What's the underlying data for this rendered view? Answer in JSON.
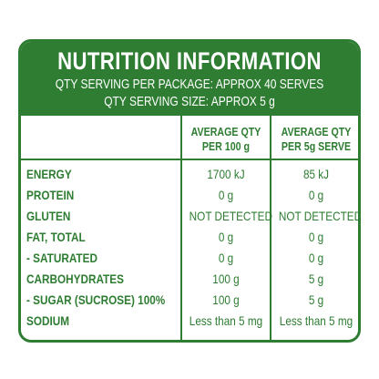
{
  "header": {
    "title": "NUTRITION INFORMATION",
    "servings_per_package": "QTY SERVING PER PACKAGE: APPROX 40 SERVES",
    "serving_size": "QTY SERVING SIZE: APPROX 5 g"
  },
  "columns": {
    "per_100g_line1": "AVERAGE QTY",
    "per_100g_line2": "PER 100 g",
    "per_serve_line1": "AVERAGE QTY",
    "per_serve_line2": "PER 5g SERVE"
  },
  "rows": [
    {
      "label": "ENERGY",
      "per_100g": "1700 kJ",
      "per_serve": "85 kJ"
    },
    {
      "label": "PROTEIN",
      "per_100g": "0 g",
      "per_serve": "0 g"
    },
    {
      "label": "GLUTEN",
      "per_100g": "NOT DETECTED",
      "per_serve": "NOT DETECTED"
    },
    {
      "label": "FAT, TOTAL",
      "per_100g": "0 g",
      "per_serve": "0 g"
    },
    {
      "label": "- SATURATED",
      "per_100g": "0 g",
      "per_serve": "0 g"
    },
    {
      "label": "CARBOHYDRATES",
      "per_100g": "100 g",
      "per_serve": "5 g"
    },
    {
      "label": "- SUGAR (SUCROSE) 100%",
      "per_100g": "100 g",
      "per_serve": "5 g"
    },
    {
      "label": "SODIUM",
      "per_100g": "Less than 5 mg",
      "per_serve": "Less than 5 mg"
    }
  ],
  "colors": {
    "brand_green": "#2e7d32",
    "text_on_green": "#ffffff"
  }
}
